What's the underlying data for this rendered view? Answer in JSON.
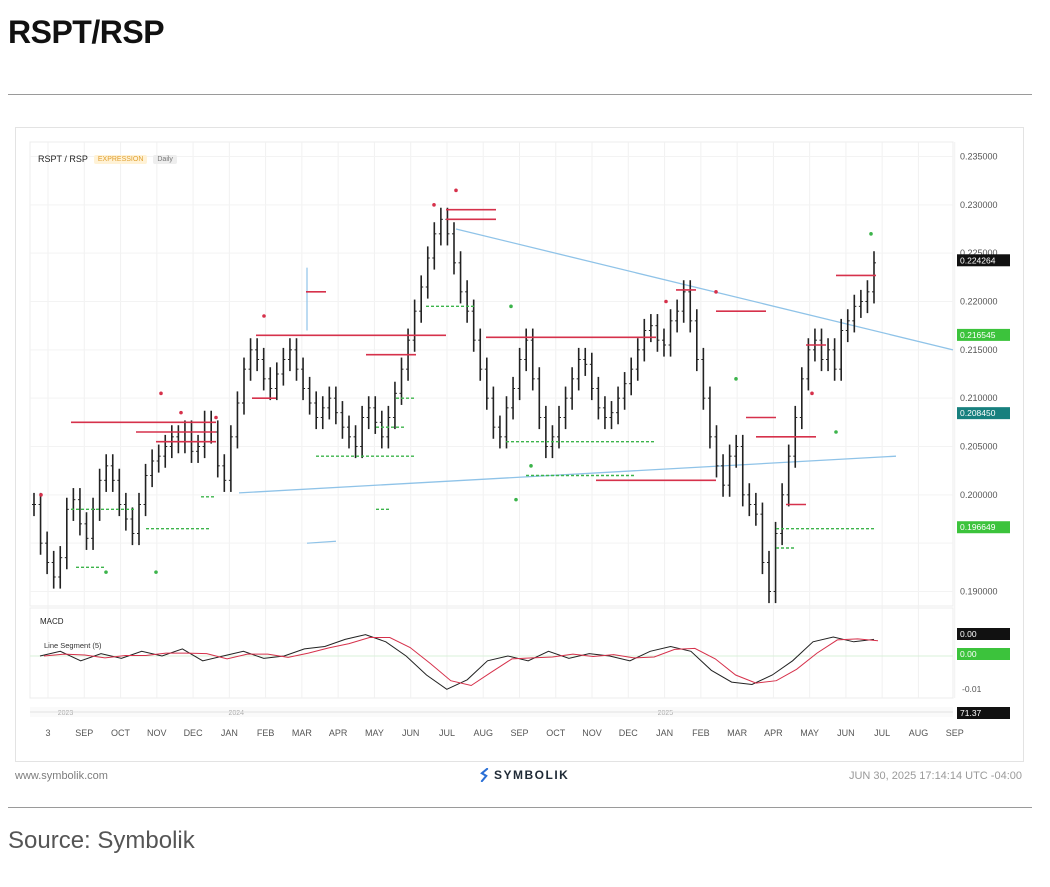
{
  "header": {
    "title": "RSPT/RSP"
  },
  "chart_header": {
    "symbol": "RSPT / RSP",
    "badge": "EXPRESSION",
    "period": "Daily"
  },
  "footer": {
    "site": "www.symbolik.com",
    "brand": "SYMBOLIK",
    "timestamp": "JUN 30, 2025 17:14:14 UTC -04:00"
  },
  "source": "Source: Symbolik",
  "colors": {
    "up_down_bar": "#222222",
    "trendline": "#8fc3e8",
    "red_level": "#d6314b",
    "green_level": "#3cb44b",
    "macd_black": "#222222",
    "macd_red": "#d6314b"
  },
  "chart_data": [
    {
      "type": "line",
      "panel": "price",
      "y_ticks": [
        0.19,
        0.195,
        0.2,
        0.205,
        0.21,
        0.215,
        0.22,
        0.225,
        0.23,
        0.235
      ],
      "y_tick_labels": [
        "0.190000",
        "",
        "0.200000",
        "0.205000",
        "0.210000",
        "0.215000",
        "0.220000",
        "0.225000",
        "0.230000",
        "0.235000"
      ],
      "ylim": [
        0.1885,
        0.2365
      ],
      "x_labels": [
        "3",
        "SEP",
        "OCT",
        "NOV",
        "DEC",
        "JAN",
        "FEB",
        "MAR",
        "APR",
        "MAY",
        "JUN",
        "JUL",
        "AUG",
        "SEP",
        "OCT",
        "NOV",
        "DEC",
        "JAN",
        "FEB",
        "MAR",
        "APR",
        "MAY",
        "JUN",
        "JUL",
        "AUG",
        "SEP"
      ],
      "year_labels": [
        "2023",
        "2024",
        "2025"
      ],
      "price_badges": [
        {
          "value": 0.224264,
          "label": "0.224264",
          "color": "#111111"
        },
        {
          "value": 0.216545,
          "label": "0.216545",
          "color": "#3cc33c"
        },
        {
          "value": 0.20845,
          "label": "0.208450",
          "color": "#17807e"
        },
        {
          "value": 0.196649,
          "label": "0.196649",
          "color": "#3cc33c"
        }
      ],
      "series": [
        {
          "values": [
            0.199,
            0.195,
            0.193,
            0.1915,
            0.1935,
            0.1985,
            0.1995,
            0.197,
            0.1955,
            0.1985,
            0.2015,
            0.203,
            0.2015,
            0.199,
            0.1975,
            0.196,
            0.199,
            0.202,
            0.2035,
            0.204,
            0.205,
            0.206,
            0.2055,
            0.2065,
            0.2045,
            0.205,
            0.2075,
            0.2065,
            0.203,
            0.2015,
            0.206,
            0.2095,
            0.213,
            0.215,
            0.214,
            0.212,
            0.211,
            0.2125,
            0.214,
            0.215,
            0.213,
            0.211,
            0.2095,
            0.208,
            0.209,
            0.21,
            0.2085,
            0.207,
            0.206,
            0.205,
            0.208,
            0.209,
            0.2075,
            0.206,
            0.208,
            0.2105,
            0.213,
            0.216,
            0.219,
            0.2215,
            0.2245,
            0.227,
            0.2285,
            0.227,
            0.224,
            0.221,
            0.219,
            0.216,
            0.213,
            0.21,
            0.207,
            0.206,
            0.209,
            0.211,
            0.214,
            0.216,
            0.212,
            0.208,
            0.205,
            0.206,
            0.208,
            0.21,
            0.212,
            0.214,
            0.2135,
            0.211,
            0.209,
            0.208,
            0.2085,
            0.21,
            0.2115,
            0.213,
            0.215,
            0.217,
            0.2175,
            0.216,
            0.2155,
            0.218,
            0.219,
            0.221,
            0.218,
            0.214,
            0.21,
            0.206,
            0.203,
            0.201,
            0.204,
            0.205,
            0.2,
            0.199,
            0.198,
            0.193,
            0.19,
            0.196,
            0.2,
            0.204,
            0.208,
            0.212,
            0.215,
            0.216,
            0.214,
            0.215,
            0.213,
            0.217,
            0.218,
            0.2195,
            0.22,
            0.221,
            0.224
          ]
        }
      ],
      "trendlines": [
        {
          "from": [
            0.2005,
            0.0
          ],
          "label": ""
        }
      ]
    },
    {
      "type": "line",
      "panel": "macd",
      "title": "MACD",
      "legend": "Line Segment (5)",
      "y_tick_labels": [
        "0.00",
        "0.00",
        "-0.01"
      ],
      "extra_label": "71.37",
      "ylim": [
        -0.012,
        0.006
      ]
    }
  ]
}
